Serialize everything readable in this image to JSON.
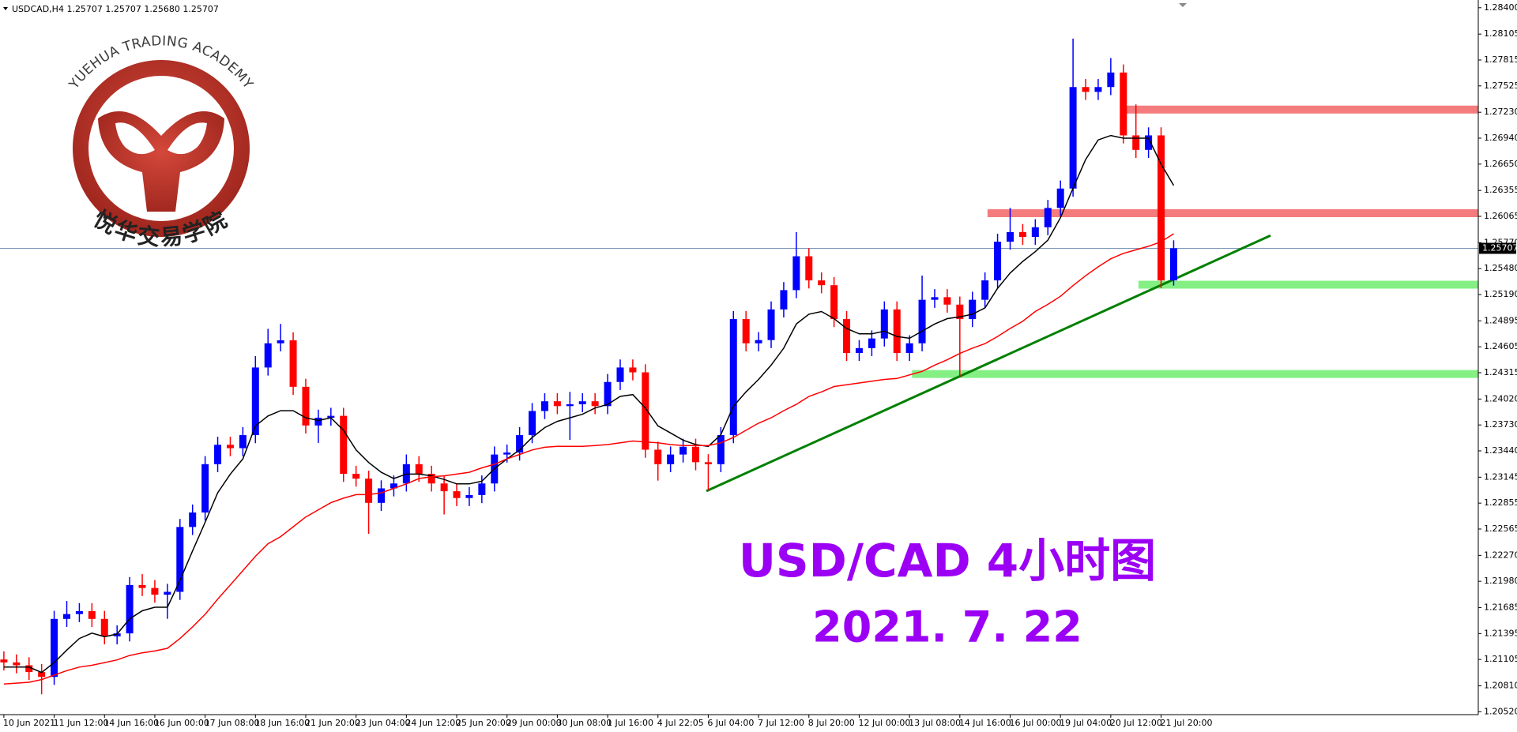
{
  "chart_data": {
    "type": "candlestick",
    "header": "USDCAD,H4  1.25707 1.25707 1.25680 1.25707",
    "categories": [
      "10 Jun 2021",
      null,
      null,
      null,
      "11 Jun 12:00",
      null,
      null,
      null,
      "14 Jun 16:00",
      null,
      null,
      null,
      "16 Jun 00:00",
      null,
      null,
      null,
      "17 Jun 08:00",
      null,
      null,
      null,
      "18 Jun 16:00",
      null,
      null,
      null,
      "21 Jun 20:00",
      null,
      null,
      null,
      "23 Jun 04:00",
      null,
      null,
      null,
      "24 Jun 12:00",
      null,
      null,
      null,
      "25 Jun 20:00",
      null,
      null,
      null,
      "29 Jun 00:00",
      null,
      null,
      null,
      "30 Jun 08:00",
      null,
      null,
      null,
      "1 Jul 16:00",
      null,
      null,
      null,
      "4 Jul 22:05",
      null,
      null,
      null,
      "6 Jul 04:00",
      null,
      null,
      null,
      "7 Jul 12:00",
      null,
      null,
      null,
      "8 Jul 20:00",
      null,
      null,
      null,
      "12 Jul 00:00",
      null,
      null,
      null,
      "13 Jul 08:00",
      null,
      null,
      null,
      "14 Jul 16:00",
      null,
      null,
      null,
      "16 Jul 00:00",
      null,
      null,
      null,
      "19 Jul 04:00",
      null,
      null,
      null,
      "20 Jul 12:00",
      null,
      null,
      null,
      "21 Jul 20:00",
      null
    ],
    "open": [
      1.21105,
      1.21072,
      1.2104,
      1.20964,
      1.2091,
      1.21559,
      1.21613,
      1.21646,
      1.21559,
      1.21364,
      1.21397,
      1.21938,
      1.21905,
      1.2183,
      1.21862,
      1.22588,
      1.2275,
      1.23291,
      1.23508,
      1.2347,
      1.23616,
      1.24373,
      1.24644,
      1.24677,
      1.24157,
      1.23724,
      1.23811,
      1.23832,
      1.23183,
      1.23129,
      1.22858,
      1.2302,
      1.23075,
      1.23291,
      1.23183,
      1.23075,
      1.22988,
      1.22912,
      1.22945,
      1.23075,
      1.23399,
      1.23421,
      1.23616,
      1.23886,
      1.23995,
      1.23941,
      1.23962,
      1.23995,
      1.23941,
      1.24211,
      1.24373,
      1.24319,
      1.23453,
      1.23291,
      1.23399,
      1.23486,
      1.23313,
      1.23291,
      1.23616,
      1.24915,
      1.24644,
      1.2468,
      1.25023,
      1.25239,
      1.25618,
      1.25348,
      1.25294,
      1.24915,
      1.24536,
      1.2459,
      1.24698,
      1.25023,
      1.24536,
      1.24644,
      1.25131,
      1.2516,
      1.25077,
      1.24915,
      1.25131,
      1.25348,
      1.25781,
      1.25889,
      1.25835,
      1.25943,
      1.26159,
      1.26376,
      1.27512,
      1.27458,
      1.27512,
      1.27675,
      1.26971,
      1.26809,
      1.26971,
      1.25348
    ],
    "high": [
      1.21195,
      1.21162,
      1.2113,
      1.21054,
      1.21649,
      1.2176,
      1.21736,
      1.21736,
      1.21649,
      1.21487,
      1.22028,
      1.2206,
      1.21995,
      1.21952,
      1.22678,
      1.2284,
      1.23381,
      1.23598,
      1.23598,
      1.23706,
      1.245,
      1.24806,
      1.24861,
      1.24767,
      1.24247,
      1.23901,
      1.23922,
      1.23922,
      1.23273,
      1.23219,
      1.2311,
      1.23165,
      1.234,
      1.23381,
      1.23273,
      1.23165,
      1.23078,
      1.23035,
      1.23165,
      1.23489,
      1.23511,
      1.23706,
      1.23976,
      1.24085,
      1.24085,
      1.241,
      1.24085,
      1.24085,
      1.24301,
      1.24463,
      1.24463,
      1.24409,
      1.23543,
      1.23489,
      1.23576,
      1.23576,
      1.23403,
      1.23706,
      1.25005,
      1.25005,
      1.2477,
      1.25113,
      1.25329,
      1.25889,
      1.25708,
      1.25438,
      1.25384,
      1.25005,
      1.2468,
      1.24788,
      1.25113,
      1.25113,
      1.24734,
      1.25402,
      1.2525,
      1.2525,
      1.25167,
      1.25221,
      1.25438,
      1.25871,
      1.2616,
      1.25979,
      1.26033,
      1.26249,
      1.26466,
      1.28054,
      1.27602,
      1.27602,
      1.27837,
      1.27765,
      1.27318,
      1.27061,
      1.27061,
      1.25797
    ],
    "low": [
      1.20982,
      1.2095,
      1.20874,
      1.20715,
      1.2082,
      1.21469,
      1.21523,
      1.21469,
      1.21274,
      1.21274,
      1.21307,
      1.21815,
      1.2174,
      1.2156,
      1.21772,
      1.22498,
      1.2266,
      1.23201,
      1.2338,
      1.2338,
      1.23526,
      1.24283,
      1.24554,
      1.24067,
      1.23634,
      1.23529,
      1.23721,
      1.23093,
      1.23039,
      1.22512,
      1.22768,
      1.2293,
      1.22985,
      1.23093,
      1.22985,
      1.22728,
      1.22822,
      1.22822,
      1.22855,
      1.22985,
      1.23309,
      1.23331,
      1.23526,
      1.23796,
      1.23851,
      1.23562,
      1.23872,
      1.23851,
      1.23851,
      1.24121,
      1.24229,
      1.23363,
      1.23107,
      1.23201,
      1.23309,
      1.23223,
      1.23,
      1.23201,
      1.23526,
      1.24554,
      1.24554,
      1.2459,
      1.24933,
      1.25149,
      1.25258,
      1.25204,
      1.24825,
      1.24446,
      1.24446,
      1.245,
      1.24608,
      1.24446,
      1.24446,
      1.24554,
      1.25041,
      1.24987,
      1.24265,
      1.24825,
      1.25041,
      1.25258,
      1.25691,
      1.25745,
      1.25745,
      1.25853,
      1.26069,
      1.26286,
      1.27368,
      1.27368,
      1.27422,
      1.26881,
      1.26719,
      1.26719,
      1.25261,
      1.2529
    ],
    "close": [
      1.21072,
      1.2104,
      1.20964,
      1.2091,
      1.21559,
      1.21613,
      1.21646,
      1.21559,
      1.21364,
      1.21397,
      1.21938,
      1.21905,
      1.2183,
      1.21862,
      1.22588,
      1.2275,
      1.23291,
      1.23508,
      1.2347,
      1.23616,
      1.24373,
      1.24644,
      1.24677,
      1.24157,
      1.23724,
      1.23811,
      1.23832,
      1.23183,
      1.23129,
      1.22858,
      1.2302,
      1.23075,
      1.23291,
      1.23183,
      1.23075,
      1.22988,
      1.22912,
      1.22945,
      1.23075,
      1.23399,
      1.23421,
      1.23616,
      1.23886,
      1.23995,
      1.23941,
      1.23962,
      1.23995,
      1.23941,
      1.24211,
      1.24373,
      1.24319,
      1.23453,
      1.23291,
      1.23399,
      1.23486,
      1.23313,
      1.23291,
      1.23616,
      1.24915,
      1.24644,
      1.2468,
      1.25023,
      1.25239,
      1.25618,
      1.25348,
      1.25294,
      1.24915,
      1.24536,
      1.2459,
      1.24698,
      1.25023,
      1.24536,
      1.24644,
      1.25131,
      1.2516,
      1.25077,
      1.24915,
      1.25131,
      1.25348,
      1.25781,
      1.25889,
      1.25835,
      1.25943,
      1.26159,
      1.26376,
      1.27512,
      1.27458,
      1.27512,
      1.27675,
      1.26971,
      1.26809,
      1.26971,
      1.25348,
      1.25707
    ],
    "up_color": "#0000ff",
    "down_color": "#ff0000",
    "lines": [
      {
        "color": "#000000",
        "values": [
          1.2102,
          1.2102,
          1.2102,
          1.2096,
          1.2107,
          1.2121,
          1.2134,
          1.214,
          1.2136,
          1.2139,
          1.2156,
          1.2165,
          1.2169,
          1.2169,
          1.2199,
          1.2232,
          1.2264,
          1.2297,
          1.2318,
          1.2335,
          1.2372,
          1.2383,
          1.2389,
          1.2389,
          1.2381,
          1.2378,
          1.2381,
          1.2367,
          1.2345,
          1.2331,
          1.232,
          1.2313,
          1.2318,
          1.2318,
          1.2316,
          1.2312,
          1.2307,
          1.2307,
          1.231,
          1.2324,
          1.2335,
          1.2345,
          1.2359,
          1.237,
          1.2377,
          1.2381,
          1.2385,
          1.2392,
          1.2396,
          1.2405,
          1.2407,
          1.2392,
          1.2372,
          1.2364,
          1.2356,
          1.2351,
          1.2349,
          1.2362,
          1.2394,
          1.241,
          1.2424,
          1.244,
          1.2459,
          1.2486,
          1.2497,
          1.25,
          1.2492,
          1.2481,
          1.2475,
          1.2475,
          1.2478,
          1.2472,
          1.247,
          1.2478,
          1.2486,
          1.2492,
          1.2494,
          1.2497,
          1.2504,
          1.2526,
          1.2543,
          1.2556,
          1.2567,
          1.258,
          1.2605,
          1.2638,
          1.267,
          1.2692,
          1.2697,
          1.2694,
          1.2694,
          1.2694,
          1.2665,
          1.2641
        ]
      },
      {
        "color": "#ff0000",
        "values": [
          1.2083,
          1.2084,
          1.2085,
          1.2088,
          1.2093,
          1.2098,
          1.2102,
          1.2104,
          1.2107,
          1.211,
          1.2115,
          1.2118,
          1.212,
          1.2123,
          1.2134,
          1.2147,
          1.2161,
          1.2178,
          1.2194,
          1.221,
          1.2226,
          1.224,
          1.2248,
          1.2259,
          1.227,
          1.2278,
          1.2286,
          1.2291,
          1.2295,
          1.2295,
          1.2297,
          1.2302,
          1.2307,
          1.2313,
          1.2315,
          1.2316,
          1.2318,
          1.232,
          1.2325,
          1.2329,
          1.2335,
          1.234,
          1.2345,
          1.2348,
          1.2349,
          1.2349,
          1.2349,
          1.235,
          1.2351,
          1.2353,
          1.2355,
          1.2354,
          1.2353,
          1.2351,
          1.235,
          1.235,
          1.235,
          1.2353,
          1.2359,
          1.2367,
          1.2375,
          1.2381,
          1.2389,
          1.2396,
          1.2405,
          1.241,
          1.2416,
          1.2418,
          1.242,
          1.2422,
          1.2424,
          1.2425,
          1.2429,
          1.2433,
          1.244,
          1.2446,
          1.2453,
          1.2459,
          1.2464,
          1.2472,
          1.2481,
          1.2489,
          1.25,
          1.2508,
          1.2517,
          1.2529,
          1.254,
          1.255,
          1.2559,
          1.2565,
          1.2569,
          1.2573,
          1.2578,
          1.2587
        ]
      }
    ],
    "levels": [
      {
        "value": 1.2726,
        "from": 89.2,
        "color": "#f47c7c"
      },
      {
        "value": 1.261,
        "from": 78.2,
        "color": "#f47c7c"
      },
      {
        "value": 1.253,
        "from": 90.2,
        "color": "#84f084"
      },
      {
        "value": 1.243,
        "from": 72.2,
        "color": "#84f084"
      }
    ],
    "trendline": {
      "from": [
        55.85,
        1.2299
      ],
      "to": [
        100.7,
        1.2585
      ],
      "color": "#008000"
    },
    "last_price": 1.25707,
    "last_price_color": "#7896b4",
    "ylim": [
      1.205,
      1.2846
    ],
    "yticks": [
      {
        "value": 1.284,
        "label": "1.28400"
      },
      1.28105,
      1.27815,
      1.27525,
      {
        "value": 1.2723,
        "label": "1.27230"
      },
      {
        "value": 1.2694,
        "label": "1.26940"
      },
      {
        "value": 1.2665,
        "label": "1.26650"
      },
      1.26355,
      1.26065,
      {
        "value": 1.2577,
        "label": "1.25770"
      },
      {
        "value": 1.2548,
        "label": "1.25480"
      },
      {
        "value": 1.2519,
        "label": "1.25190"
      },
      1.24895,
      1.24605,
      1.24315,
      {
        "value": 1.2402,
        "label": "1.24020"
      },
      {
        "value": 1.2373,
        "label": "1.23730"
      },
      {
        "value": 1.2344,
        "label": "1.23440"
      },
      1.23145,
      1.22855,
      1.22565,
      {
        "value": 1.2227,
        "label": "1.22270"
      },
      {
        "value": 1.2198,
        "label": "1.21980"
      },
      1.21685,
      1.21395,
      1.21105,
      {
        "value": 1.2081,
        "label": "1.20810"
      },
      {
        "value": 1.2052,
        "label": "1.20520"
      }
    ],
    "grid": false,
    "annotations": [
      {
        "text": "USD/CAD 4小时图",
        "color": "#9b00f5"
      },
      {
        "text": "2021. 7. 22",
        "color": "#9b00f5"
      }
    ]
  },
  "logo": {
    "name_en": "YUEHUA TRADING ACADEMY",
    "name_zh": "悦华交易学院"
  }
}
